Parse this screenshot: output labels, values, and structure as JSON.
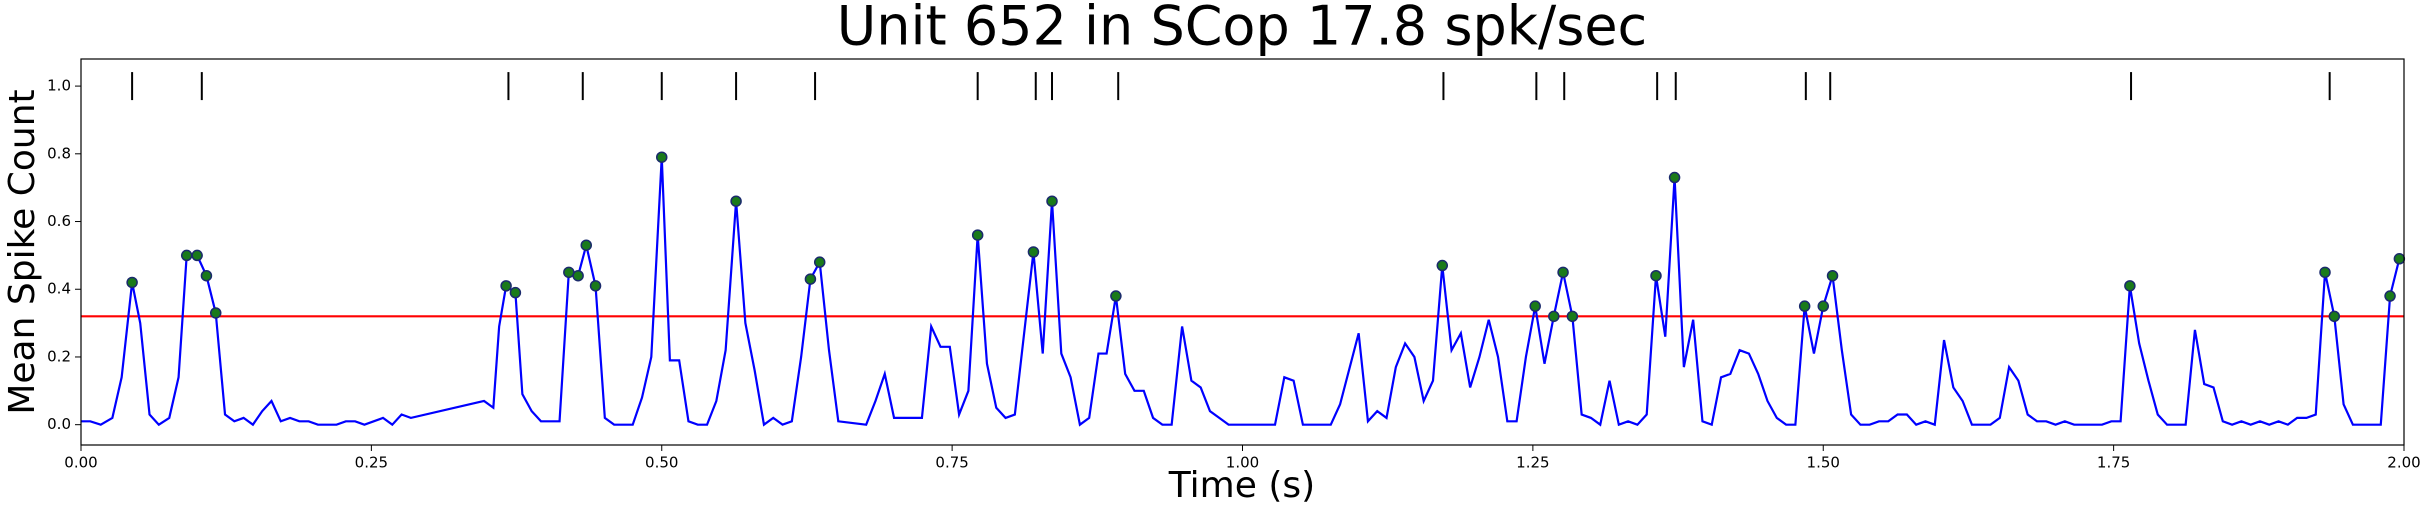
{
  "chart_data": {
    "type": "line",
    "title": "Unit 652 in SCop 17.8 spk/sec",
    "xlabel": "Time (s)",
    "ylabel": "Mean Spike Count",
    "xlim": [
      0,
      2
    ],
    "ylim": [
      -0.06,
      1.08
    ],
    "xticks": [
      {
        "value": 0,
        "label": "0.00"
      },
      0.25,
      {
        "value": 0.5,
        "label": "0.50"
      },
      0.75,
      {
        "value": 1,
        "label": "1.00"
      },
      1.25,
      {
        "value": 1.5,
        "label": "1.50"
      },
      1.75,
      {
        "value": 2,
        "label": "2.00"
      }
    ],
    "yticks": [
      {
        "value": 0,
        "label": "0.0"
      },
      0.2,
      0.4,
      0.6,
      0.8,
      {
        "value": 1,
        "label": "1.0"
      }
    ],
    "series": [
      {
        "color": "#0000ff",
        "marker": "none",
        "x": [
          0.0,
          0.008,
          0.017,
          0.027,
          0.035,
          0.044,
          0.051,
          0.059,
          0.067,
          0.076,
          0.084,
          0.091,
          0.1,
          0.108,
          0.116,
          0.124,
          0.132,
          0.14,
          0.148,
          0.156,
          0.164,
          0.172,
          0.18,
          0.188,
          0.196,
          0.204,
          0.22,
          0.228,
          0.236,
          0.244,
          0.252,
          0.26,
          0.268,
          0.276,
          0.284,
          0.347,
          0.355,
          0.36,
          0.366,
          0.374,
          0.38,
          0.388,
          0.396,
          0.412,
          0.42,
          0.428,
          0.435,
          0.443,
          0.451,
          0.459,
          0.475,
          0.483,
          0.491,
          0.5,
          0.507,
          0.515,
          0.523,
          0.531,
          0.539,
          0.547,
          0.555,
          0.564,
          0.572,
          0.58,
          0.588,
          0.596,
          0.604,
          0.612,
          0.62,
          0.628,
          0.636,
          0.644,
          0.652,
          0.676,
          0.684,
          0.692,
          0.7,
          0.724,
          0.732,
          0.74,
          0.748,
          0.756,
          0.764,
          0.772,
          0.78,
          0.788,
          0.796,
          0.804,
          0.82,
          0.828,
          0.836,
          0.844,
          0.852,
          0.86,
          0.868,
          0.876,
          0.883,
          0.891,
          0.899,
          0.907,
          0.915,
          0.923,
          0.931,
          0.939,
          0.948,
          0.956,
          0.964,
          0.972,
          0.98,
          0.988,
          1.028,
          1.036,
          1.044,
          1.052,
          1.076,
          1.084,
          1.1,
          1.108,
          1.116,
          1.124,
          1.132,
          1.14,
          1.148,
          1.156,
          1.164,
          1.172,
          1.18,
          1.188,
          1.196,
          1.204,
          1.212,
          1.22,
          1.228,
          1.236,
          1.244,
          1.252,
          1.26,
          1.268,
          1.276,
          1.284,
          1.292,
          1.3,
          1.308,
          1.316,
          1.324,
          1.332,
          1.34,
          1.348,
          1.356,
          1.364,
          1.372,
          1.38,
          1.388,
          1.396,
          1.404,
          1.412,
          1.42,
          1.428,
          1.436,
          1.444,
          1.452,
          1.46,
          1.468,
          1.476,
          1.484,
          1.492,
          1.5,
          1.508,
          1.516,
          1.524,
          1.532,
          1.54,
          1.548,
          1.556,
          1.564,
          1.572,
          1.58,
          1.588,
          1.596,
          1.604,
          1.612,
          1.62,
          1.628,
          1.644,
          1.652,
          1.66,
          1.668,
          1.676,
          1.684,
          1.692,
          1.7,
          1.708,
          1.716,
          1.74,
          1.748,
          1.756,
          1.764,
          1.772,
          1.78,
          1.788,
          1.796,
          1.812,
          1.82,
          1.828,
          1.836,
          1.844,
          1.852,
          1.86,
          1.868,
          1.876,
          1.884,
          1.892,
          1.9,
          1.908,
          1.916,
          1.924,
          1.932,
          1.94,
          1.948,
          1.956,
          1.98,
          1.988,
          1.996
        ],
        "values": [
          0.01,
          0.01,
          0,
          0.02,
          0.14,
          0.42,
          0.3,
          0.03,
          0,
          0.02,
          0.14,
          0.5,
          0.5,
          0.44,
          0.33,
          0.03,
          0.01,
          0.02,
          0,
          0.04,
          0.07,
          0.01,
          0.02,
          0.01,
          0.01,
          0,
          0,
          0.01,
          0.01,
          0,
          0.01,
          0.02,
          0,
          0.03,
          0.02,
          0.07,
          0.05,
          0.29,
          0.41,
          0.39,
          0.09,
          0.04,
          0.01,
          0.01,
          0.45,
          0.44,
          0.53,
          0.41,
          0.02,
          0,
          0,
          0.08,
          0.2,
          0.79,
          0.19,
          0.19,
          0.01,
          0,
          0,
          0.07,
          0.22,
          0.66,
          0.3,
          0.16,
          0,
          0.02,
          0,
          0.01,
          0.2,
          0.43,
          0.48,
          0.22,
          0.01,
          0,
          0.07,
          0.15,
          0.02,
          0.02,
          0.29,
          0.23,
          0.23,
          0.03,
          0.1,
          0.56,
          0.18,
          0.05,
          0.02,
          0.03,
          0.51,
          0.21,
          0.66,
          0.21,
          0.14,
          0,
          0.02,
          0.21,
          0.21,
          0.38,
          0.15,
          0.1,
          0.1,
          0.02,
          0,
          0,
          0.29,
          0.13,
          0.11,
          0.04,
          0.02,
          0,
          0,
          0.14,
          0.13,
          0,
          0,
          0.06,
          0.27,
          0.01,
          0.04,
          0.02,
          0.17,
          0.24,
          0.2,
          0.07,
          0.13,
          0.47,
          0.22,
          0.27,
          0.11,
          0.2,
          0.31,
          0.2,
          0.01,
          0.01,
          0.2,
          0.35,
          0.18,
          0.32,
          0.45,
          0.32,
          0.03,
          0.02,
          0,
          0.13,
          0,
          0.01,
          0,
          0.03,
          0.44,
          0.26,
          0.73,
          0.17,
          0.31,
          0.01,
          0,
          0.14,
          0.15,
          0.22,
          0.21,
          0.15,
          0.07,
          0.02,
          0,
          0,
          0.35,
          0.21,
          0.35,
          0.44,
          0.22,
          0.03,
          0,
          0,
          0.01,
          0.01,
          0.03,
          0.03,
          0,
          0.01,
          0,
          0.25,
          0.11,
          0.07,
          0,
          0,
          0.02,
          0.17,
          0.13,
          0.03,
          0.01,
          0.01,
          0,
          0.01,
          0,
          0,
          0.01,
          0.01,
          0.41,
          0.24,
          0.13,
          0.03,
          0,
          0,
          0.28,
          0.12,
          0.11,
          0.01,
          0,
          0.01,
          0,
          0.01,
          0,
          0.01,
          0,
          0.02,
          0.02,
          0.03,
          0.45,
          0.32,
          0.06,
          0,
          0,
          0.38,
          0.49
        ]
      },
      {
        "color": "#1a7a1a",
        "edgecolor": "#1a2a6c",
        "marker": "o",
        "x": [
          0.044,
          0.091,
          0.1,
          0.108,
          0.116,
          0.366,
          0.374,
          0.42,
          0.428,
          0.435,
          0.443,
          0.5,
          0.564,
          0.628,
          0.636,
          0.772,
          0.82,
          0.836,
          0.891,
          1.172,
          1.252,
          1.268,
          1.276,
          1.284,
          1.356,
          1.372,
          1.484,
          1.5,
          1.508,
          1.764,
          1.932,
          1.94,
          1.988,
          1.996
        ],
        "values": [
          0.42,
          0.5,
          0.5,
          0.44,
          0.33,
          0.41,
          0.39,
          0.45,
          0.44,
          0.53,
          0.41,
          0.79,
          0.66,
          0.43,
          0.48,
          0.56,
          0.51,
          0.66,
          0.38,
          0.47,
          0.35,
          0.32,
          0.45,
          0.32,
          0.44,
          0.73,
          0.35,
          0.35,
          0.44,
          0.41,
          0.45,
          0.32,
          0.38,
          0.49
        ]
      },
      {
        "color": "#000000",
        "marker": "|",
        "x": [
          0.044,
          0.104,
          0.368,
          0.432,
          0.5,
          0.564,
          0.632,
          0.772,
          0.822,
          0.836,
          0.893,
          1.173,
          1.253,
          1.277,
          1.357,
          1.373,
          1.485,
          1.506,
          1.765,
          1.936
        ],
        "values": [
          1,
          1,
          1,
          1,
          1,
          1,
          1,
          1,
          1,
          1,
          1,
          1,
          1,
          1,
          1,
          1,
          1,
          1,
          1,
          1
        ]
      }
    ],
    "hlines": [
      {
        "value": 0.32,
        "color": "#ff0000"
      }
    ]
  }
}
